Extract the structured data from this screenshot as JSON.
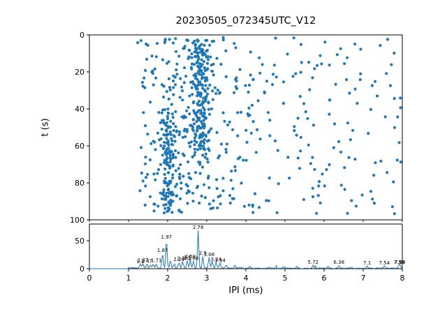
{
  "figure": {
    "title": "20230505_072345UTC_V12",
    "background": "#ffffff",
    "accent_color": "#1f77b4"
  },
  "chart_data": [
    {
      "type": "scatter",
      "title": "20230505_072345UTC_V12",
      "xlabel": "IPI (ms)",
      "ylabel": "t (s)",
      "xlim": [
        0,
        8
      ],
      "ylim": [
        0,
        100
      ],
      "y_inverted": true,
      "x_ticks": [
        0,
        1,
        2,
        3,
        4,
        5,
        6,
        7,
        8
      ],
      "y_ticks": [
        0,
        20,
        40,
        60,
        80,
        100
      ],
      "grid": false,
      "marker_color": "#1f77b4",
      "marker_radius": 2.1,
      "point_count": 780,
      "seed": 20230505,
      "clusters": [
        {
          "kind": "uniform",
          "weight": 0.33,
          "x": [
            1.2,
            7.98
          ],
          "t": [
            1,
            97
          ]
        },
        {
          "kind": "gaussian",
          "weight": 0.22,
          "x_mean": 2.85,
          "x_sd": 0.13,
          "t": [
            2,
            62
          ]
        },
        {
          "kind": "gaussian",
          "weight": 0.13,
          "x_mean": 2.0,
          "x_sd": 0.09,
          "t": [
            40,
            97
          ]
        },
        {
          "kind": "gaussian",
          "weight": 0.12,
          "x_mean": 2.4,
          "x_sd": 0.35,
          "t": [
            2,
            97
          ]
        },
        {
          "kind": "uniform",
          "weight": 0.2,
          "x": [
            1.3,
            4.2
          ],
          "t": [
            1,
            97
          ]
        }
      ]
    },
    {
      "type": "line",
      "xlabel": "IPI (ms)",
      "xlim": [
        0,
        8
      ],
      "ylim": [
        0,
        80
      ],
      "x_ticks": [
        0,
        1,
        2,
        3,
        4,
        5,
        6,
        7,
        8
      ],
      "y_ticks": [
        0,
        50
      ],
      "grid": false,
      "line_color": "#1f77b4",
      "noise_seed": 777,
      "bin_width": 0.02,
      "peak_sigma": 0.024,
      "peaks": [
        {
          "x": 1.3,
          "h": 6,
          "label": "1.3"
        },
        {
          "x": 1.37,
          "h": 9,
          "label": "1.37"
        },
        {
          "x": 1.47,
          "h": 7,
          "label": "1.47"
        },
        {
          "x": 1.56,
          "h": 5
        },
        {
          "x": 1.63,
          "h": 6
        },
        {
          "x": 1.71,
          "h": 8,
          "label": "1.71"
        },
        {
          "x": 1.87,
          "h": 26,
          "label": "1.87"
        },
        {
          "x": 1.97,
          "h": 50,
          "label": "1.97"
        },
        {
          "x": 2.07,
          "h": 13
        },
        {
          "x": 2.17,
          "h": 7
        },
        {
          "x": 2.29,
          "h": 10,
          "label": "2.29"
        },
        {
          "x": 2.38,
          "h": 12,
          "label": "2.38"
        },
        {
          "x": 2.5,
          "h": 13,
          "label": "2.5"
        },
        {
          "x": 2.58,
          "h": 15,
          "label": "2.58"
        },
        {
          "x": 2.66,
          "h": 12,
          "label": "2.66"
        },
        {
          "x": 2.78,
          "h": 68,
          "label": "2.78"
        },
        {
          "x": 2.9,
          "h": 21,
          "label": "2.9"
        },
        {
          "x": 3.06,
          "h": 19,
          "label": "3.06"
        },
        {
          "x": 3.14,
          "h": 12
        },
        {
          "x": 3.24,
          "h": 10,
          "label": "3.24"
        },
        {
          "x": 3.34,
          "h": 8,
          "label": "3.34"
        },
        {
          "x": 3.5,
          "h": 5
        },
        {
          "x": 3.72,
          "h": 4
        },
        {
          "x": 4.1,
          "h": 3
        },
        {
          "x": 4.6,
          "h": 2
        },
        {
          "x": 5.0,
          "h": 2
        },
        {
          "x": 5.3,
          "h": 3
        },
        {
          "x": 5.72,
          "h": 5,
          "label": "5.72"
        },
        {
          "x": 6.1,
          "h": 3
        },
        {
          "x": 6.38,
          "h": 5,
          "label": "6.38"
        },
        {
          "x": 6.7,
          "h": 2
        },
        {
          "x": 7.1,
          "h": 4,
          "label": "7.1"
        },
        {
          "x": 7.54,
          "h": 4,
          "label": "7.54"
        },
        {
          "x": 7.92,
          "h": 5,
          "label": "7.92"
        },
        {
          "x": 7.94,
          "h": 5,
          "label": "7.94"
        }
      ]
    }
  ]
}
